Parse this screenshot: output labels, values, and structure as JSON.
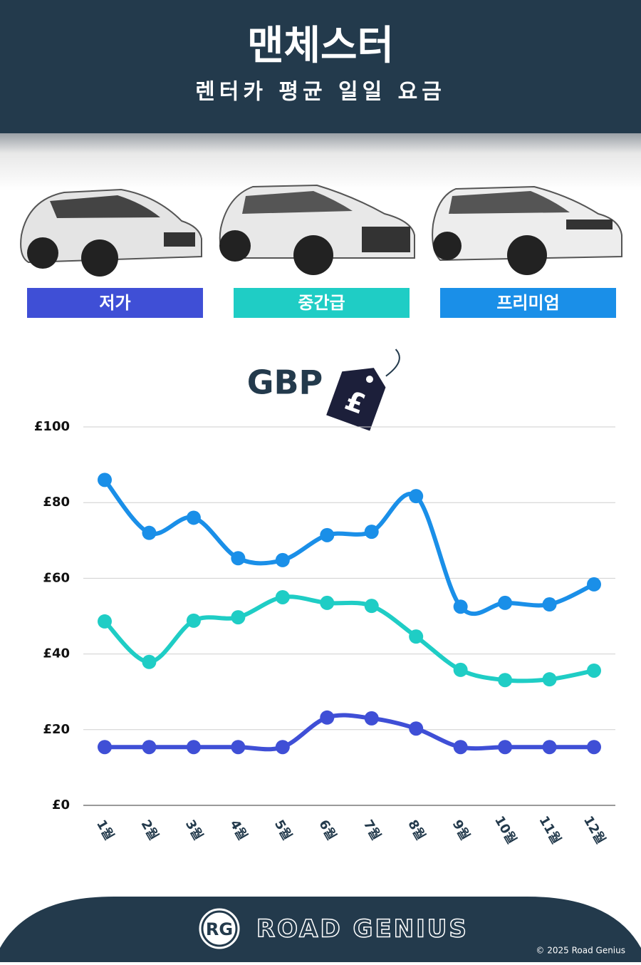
{
  "chart_data": {
    "type": "line",
    "title": "맨체스터",
    "subtitle": "렌터카 평균 일일 요금",
    "unit_label": "GBP",
    "tag_label": "£",
    "categories": [
      "1월",
      "2월",
      "3월",
      "4월",
      "5월",
      "6월",
      "7월",
      "8월",
      "9월",
      "10월",
      "11월",
      "12월"
    ],
    "series": [
      {
        "name": "저가",
        "color": "#3f4fd6",
        "values": [
          15.4,
          15.4,
          15.4,
          15.4,
          15.4,
          23.2,
          23,
          20.3,
          15.4,
          15.4,
          15.4,
          15.4
        ]
      },
      {
        "name": "중간급",
        "color": "#1fcdc5",
        "values": [
          48.6,
          37.9,
          48.8,
          49.7,
          55,
          53.5,
          52.7,
          44.6,
          35.8,
          33.1,
          33.3,
          35.6
        ]
      },
      {
        "name": "프리미엄",
        "color": "#1a8fe8",
        "values": [
          86,
          72,
          76,
          65.3,
          64.8,
          71.4,
          72.3,
          81.7,
          52.5,
          53.5,
          53.1,
          58.4
        ]
      }
    ],
    "ylim": [
      0,
      100
    ],
    "yticks": [
      {
        "value": 0,
        "label": "£0"
      },
      {
        "value": 20,
        "label": "£20"
      },
      {
        "value": 40,
        "label": "£40"
      },
      {
        "value": 60,
        "label": "£60"
      },
      {
        "value": 80,
        "label": "£80"
      },
      {
        "value": 100,
        "label": "£100"
      }
    ],
    "grid": true,
    "smooth": true
  },
  "footer": {
    "logo": "RG",
    "brand": "ROAD GENIUS",
    "copyright": "© 2025 Road Genius"
  }
}
